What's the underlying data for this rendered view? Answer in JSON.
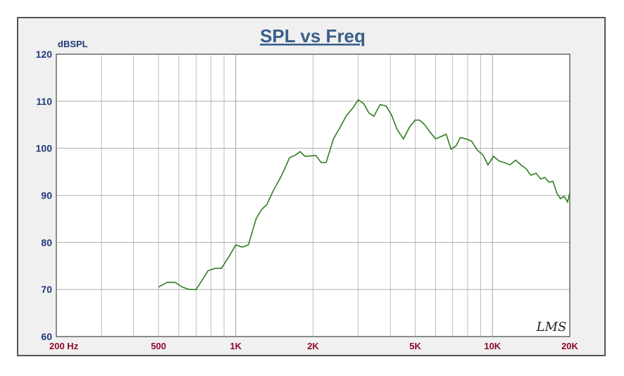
{
  "chart_data": {
    "type": "line",
    "title": "SPL vs Freq",
    "ylabel": "dBSPL",
    "xlabel": "",
    "x_scale": "log",
    "xlim": [
      200,
      20000
    ],
    "ylim": [
      60,
      120
    ],
    "yticks": [
      60,
      70,
      80,
      90,
      100,
      110,
      120
    ],
    "xtick_labels": [
      {
        "value": 200,
        "label": "200  Hz"
      },
      {
        "value": 500,
        "label": "500"
      },
      {
        "value": 1000,
        "label": "1K"
      },
      {
        "value": 2000,
        "label": "2K"
      },
      {
        "value": 5000,
        "label": "5K"
      },
      {
        "value": 10000,
        "label": "10K"
      },
      {
        "value": 20000,
        "label": "20K"
      }
    ],
    "grid": true,
    "watermark": "LMS",
    "colors": {
      "line": "#2e7d1e",
      "title": "#3a5f8a",
      "y_tick_label": "#1f3a78",
      "x_tick_label": "#8b0a2a",
      "grid": "#a0a0a0",
      "plot_bg": "#ffffff",
      "frame_bg": "#f0f0f0"
    },
    "series": [
      {
        "x": [
          500,
          540,
          580,
          620,
          660,
          700,
          740,
          780,
          830,
          880,
          940,
          1000,
          1060,
          1120,
          1200,
          1260,
          1320,
          1400,
          1500,
          1560,
          1620,
          1700,
          1780,
          1860,
          1960,
          2050,
          2150,
          2250,
          2400,
          2550,
          2700,
          2850,
          3000,
          3150,
          3300,
          3450,
          3650,
          3850,
          4050,
          4250,
          4500,
          4750,
          5000,
          5200,
          5450,
          5700,
          6000,
          6300,
          6600,
          6900,
          7200,
          7500,
          7900,
          8300,
          8700,
          9200,
          9600,
          10100,
          10600,
          11100,
          11700,
          12300,
          12900,
          13500,
          14100,
          14800,
          15400,
          16000,
          16600,
          17200,
          17800,
          18400,
          19000,
          19600,
          20000
        ],
        "y": [
          70.5,
          71.5,
          71.5,
          70.5,
          70.0,
          70.0,
          72.0,
          74.0,
          74.5,
          74.5,
          77.0,
          79.5,
          79.0,
          79.5,
          85.0,
          87.0,
          88.0,
          91.0,
          94.0,
          96.0,
          98.0,
          98.5,
          99.3,
          98.3,
          98.4,
          98.5,
          97.0,
          97.0,
          102.0,
          104.5,
          107.0,
          108.5,
          110.3,
          109.5,
          107.5,
          106.8,
          109.3,
          109.0,
          107.0,
          104.0,
          102.0,
          104.5,
          106.0,
          106.0,
          105.0,
          103.5,
          102.0,
          102.5,
          103.0,
          99.8,
          100.5,
          102.3,
          102.0,
          101.5,
          99.7,
          98.5,
          96.5,
          98.3,
          97.3,
          97.0,
          96.5,
          97.5,
          96.5,
          95.7,
          94.3,
          94.7,
          93.5,
          93.8,
          92.8,
          93.0,
          90.5,
          89.3,
          89.8,
          88.6,
          90.5
        ]
      }
    ]
  }
}
